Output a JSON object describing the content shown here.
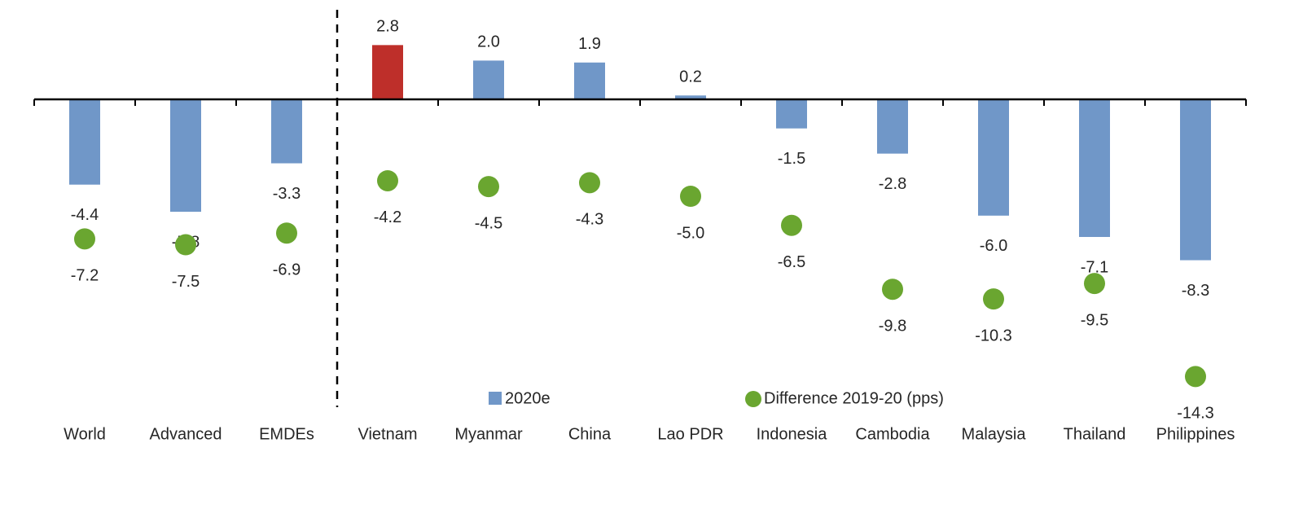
{
  "chart_data": {
    "type": "bar",
    "title": "",
    "xlabel": "",
    "ylabel": "",
    "categories": [
      "World",
      "Advanced",
      "EMDEs",
      "Vietnam",
      "Myanmar",
      "China",
      "Lao PDR",
      "Indonesia",
      "Cambodia",
      "Malaysia",
      "Thailand",
      "Philippines"
    ],
    "series": [
      {
        "name": "2020e",
        "kind": "bar",
        "color": "#7097c8",
        "highlight_color": "#be2f2a",
        "highlight_index": 3,
        "values": [
          -4.4,
          -5.8,
          -3.3,
          2.8,
          2.0,
          1.9,
          0.2,
          -1.5,
          -2.8,
          -6.0,
          -7.1,
          -8.3
        ],
        "labels": [
          "-4.4",
          "-5.8",
          "-3.3",
          "2.8",
          "2.0",
          "1.9",
          "0.2",
          "-1.5",
          "-2.8",
          "-6.0",
          "-7.1",
          "-8.3"
        ]
      },
      {
        "name": "Difference 2019-20 (pps)",
        "kind": "scatter",
        "color": "#6aa630",
        "values": [
          -7.2,
          -7.5,
          -6.9,
          -4.2,
          -4.5,
          -4.3,
          -5.0,
          -6.5,
          -9.8,
          -10.3,
          -9.5,
          -14.3
        ],
        "labels": [
          "-7.2",
          "-7.5",
          "-6.9",
          "-4.2",
          "-4.5",
          "-4.3",
          "-5.0",
          "-6.5",
          "-9.8",
          "-10.3",
          "-9.5",
          "-14.3"
        ]
      }
    ],
    "ylim": [
      -15.5,
      4.5
    ],
    "separator_after_index": 2,
    "grid": false,
    "legend": "bottom-center"
  }
}
